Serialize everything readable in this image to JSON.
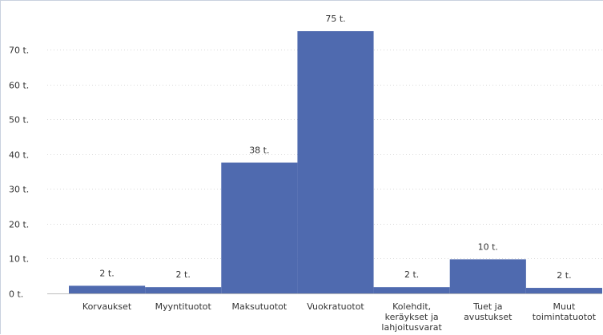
{
  "chart_data": {
    "type": "bar",
    "title": "",
    "xlabel": "",
    "ylabel": "",
    "categories": [
      [
        "Korvaukset"
      ],
      [
        "Myyntituotot"
      ],
      [
        "Maksutuotot"
      ],
      [
        "Vuokratuotot"
      ],
      [
        "Kolehdit,",
        "keräykset ja",
        "lahjoitusvarat"
      ],
      [
        "Tuet ja",
        "avustukset"
      ],
      [
        "Muut",
        "toimintatuotot"
      ]
    ],
    "values": [
      2.2,
      1.8,
      37.6,
      75.4,
      1.8,
      9.8,
      1.6
    ],
    "data_labels": [
      "2 t.",
      "2 t.",
      "38 t.",
      "75 t.",
      "2 t.",
      "10 t.",
      "2 t."
    ],
    "ylim": [
      0,
      75.4
    ],
    "yticks": [
      0,
      10,
      20,
      30,
      40,
      50,
      60,
      70
    ],
    "ytick_labels": [
      "0 t.",
      "10 t.",
      "20 t.",
      "30 t.",
      "40 t.",
      "50 t.",
      "60 t.",
      "70 t."
    ],
    "bar_color": "#4f6aaf",
    "grid": true,
    "legend": "none"
  }
}
